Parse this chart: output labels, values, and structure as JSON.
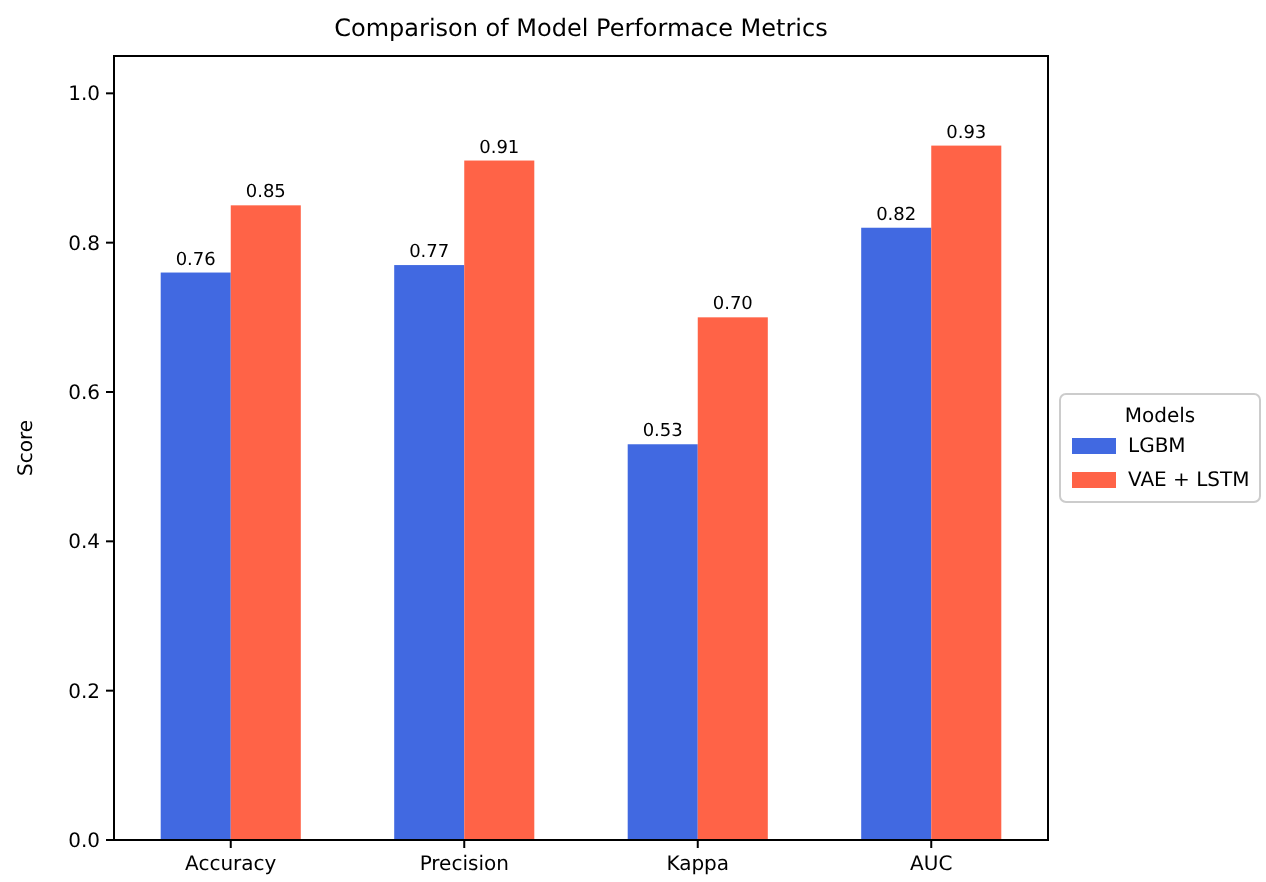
{
  "chart_data": {
    "type": "bar",
    "title": "Comparison of Model Performace Metrics",
    "ylabel": "Score",
    "legend_title": "Models",
    "categories": [
      "Accuracy",
      "Precision",
      "Kappa",
      "AUC"
    ],
    "series": [
      {
        "name": "LGBM",
        "color": "#4169e1",
        "values": [
          0.76,
          0.77,
          0.53,
          0.82
        ],
        "value_labels": [
          "0.76",
          "0.77",
          "0.53",
          "0.82"
        ]
      },
      {
        "name": "VAE + LSTM",
        "color": "#ff6347",
        "values": [
          0.85,
          0.91,
          0.7,
          0.93
        ],
        "value_labels": [
          "0.85",
          "0.91",
          "0.70",
          "0.93"
        ]
      }
    ],
    "ylim": [
      0,
      1.05
    ],
    "yticks": [
      {
        "value": 0,
        "label": "0.0"
      },
      {
        "value": 0.2,
        "label": "0.2"
      },
      {
        "value": 0.4,
        "label": "0.4"
      },
      {
        "value": 0.6,
        "label": "0.6"
      },
      {
        "value": 0.8,
        "label": "0.8"
      },
      {
        "value": 1,
        "label": "1.0"
      }
    ],
    "grid": false,
    "legend": "right"
  }
}
